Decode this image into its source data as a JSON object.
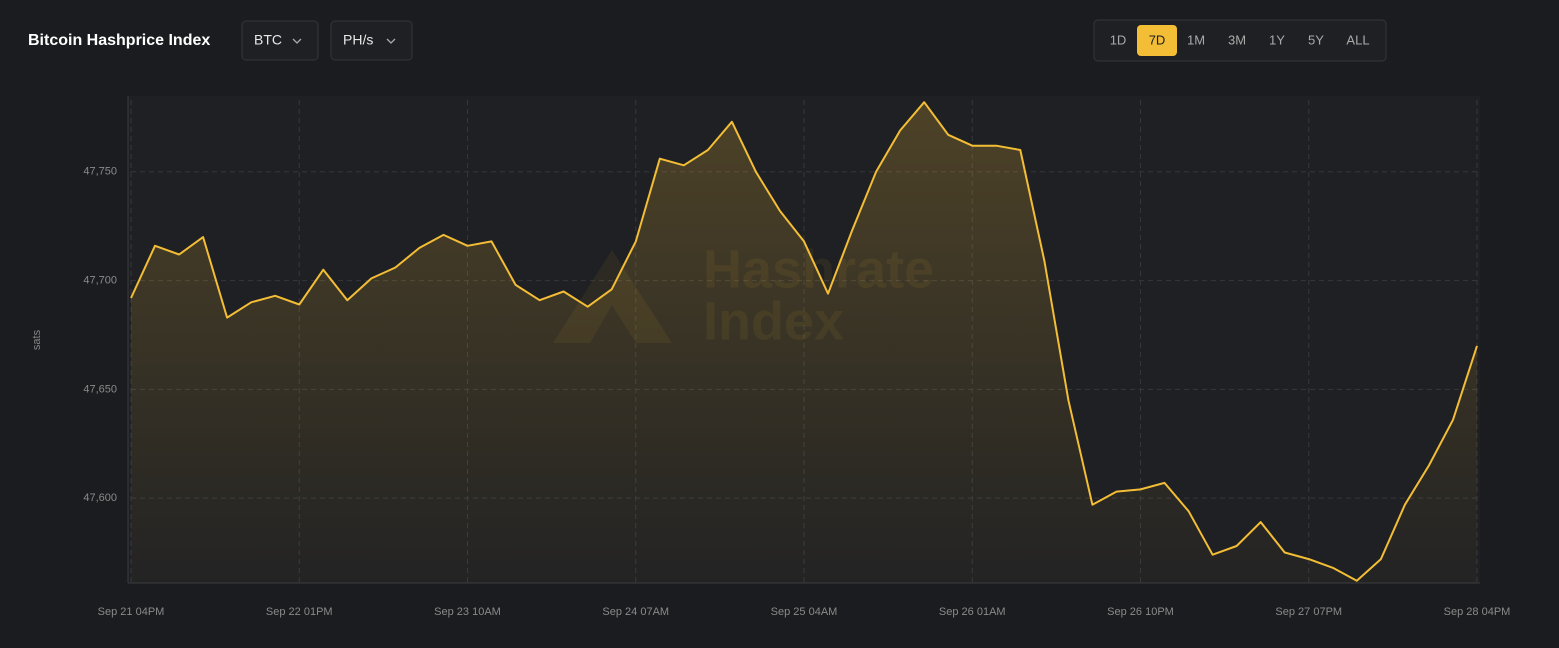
{
  "controls": {
    "dropdowns": [
      "BTC",
      "PH/s"
    ],
    "ranges": [
      "1D",
      "7D",
      "1M",
      "3M",
      "1Y",
      "5Y",
      "ALL"
    ],
    "active_range": "7D"
  },
  "chart_data": {
    "type": "area",
    "title": "Bitcoin Hashprice Index",
    "ylabel": "sats",
    "watermark": [
      "Hashrate",
      "Index"
    ],
    "x": [
      "Sep 21 04PM",
      "Sep 21 07PM",
      "Sep 21 10PM",
      "Sep 22 01AM",
      "Sep 22 04AM",
      "Sep 22 07AM",
      "Sep 22 10AM",
      "Sep 22 01PM",
      "Sep 22 04PM",
      "Sep 22 07PM",
      "Sep 22 10PM",
      "Sep 23 01AM",
      "Sep 23 04AM",
      "Sep 23 07AM",
      "Sep 23 10AM",
      "Sep 23 01PM",
      "Sep 23 04PM",
      "Sep 23 07PM",
      "Sep 23 10PM",
      "Sep 24 01AM",
      "Sep 24 04AM",
      "Sep 24 07AM",
      "Sep 24 10AM",
      "Sep 24 01PM",
      "Sep 24 04PM",
      "Sep 24 07PM",
      "Sep 24 10PM",
      "Sep 25 01AM",
      "Sep 25 04AM",
      "Sep 25 07AM",
      "Sep 25 10AM",
      "Sep 25 01PM",
      "Sep 25 04PM",
      "Sep 25 07PM",
      "Sep 25 10PM",
      "Sep 26 01AM",
      "Sep 26 04AM",
      "Sep 26 07AM",
      "Sep 26 10AM",
      "Sep 26 01PM",
      "Sep 26 04PM",
      "Sep 26 07PM",
      "Sep 26 10PM",
      "Sep 27 01AM",
      "Sep 27 04AM",
      "Sep 27 07AM",
      "Sep 27 10AM",
      "Sep 27 01PM",
      "Sep 27 04PM",
      "Sep 27 07PM",
      "Sep 27 10PM",
      "Sep 28 01AM",
      "Sep 28 04AM",
      "Sep 28 07AM",
      "Sep 28 10AM",
      "Sep 28 01PM",
      "Sep 28 04PM"
    ],
    "series": [
      {
        "name": "Hashprice",
        "color": "#f3bd36",
        "values": [
          47692,
          47716,
          47712,
          47720,
          47683,
          47690,
          47693,
          47689,
          47705,
          47691,
          47701,
          47706,
          47715,
          47721,
          47716,
          47718,
          47698,
          47691,
          47695,
          47688,
          47696,
          47718,
          47756,
          47753,
          47760,
          47773,
          47750,
          47732,
          47718,
          47694,
          47723,
          47750,
          47769,
          47782,
          47767,
          47762,
          47762,
          47760,
          47709,
          47645,
          47597,
          47603,
          47604,
          47607,
          47594,
          47574,
          47578,
          47589,
          47575,
          47572,
          47568,
          47562,
          47572,
          47597,
          47615,
          47636,
          47670
        ]
      }
    ],
    "xticks": [
      "Sep 21 04PM",
      "Sep 22 01PM",
      "Sep 23 10AM",
      "Sep 24 07AM",
      "Sep 25 04AM",
      "Sep 26 01AM",
      "Sep 26 10PM",
      "Sep 27 07PM",
      "Sep 28 04PM"
    ],
    "ylim": [
      47561,
      47783
    ],
    "yticks": [
      {
        "value": 47600,
        "label": "47,600"
      },
      {
        "value": 47650,
        "label": "47,650"
      },
      {
        "value": 47700,
        "label": "47,700"
      },
      {
        "value": 47750,
        "label": "47,750"
      }
    ],
    "grid": true
  }
}
